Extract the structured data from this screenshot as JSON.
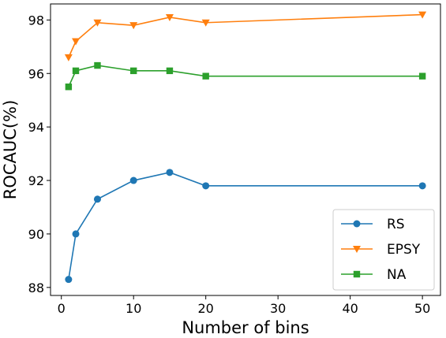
{
  "chart_data": {
    "type": "line",
    "title": "",
    "xlabel": "Number of bins",
    "ylabel": "ROCAUC(%)",
    "xlim": [
      -1.5,
      52.5
    ],
    "ylim": [
      87.7,
      98.6
    ],
    "xticks": [
      0,
      10,
      20,
      30,
      40,
      50
    ],
    "yticks": [
      88,
      90,
      92,
      94,
      96,
      98
    ],
    "grid": false,
    "legend_position": "lower-right",
    "x": [
      1,
      2,
      5,
      10,
      15,
      20,
      50
    ],
    "series": [
      {
        "name": "RS",
        "color": "#1f77b4",
        "marker": "circle",
        "values": [
          88.3,
          90.0,
          91.3,
          92.0,
          92.3,
          91.8,
          91.8
        ]
      },
      {
        "name": "EPSY",
        "color": "#ff7f0e",
        "marker": "triangle-down",
        "values": [
          96.6,
          97.2,
          97.9,
          97.8,
          98.1,
          97.9,
          98.2
        ]
      },
      {
        "name": "NA",
        "color": "#2ca02c",
        "marker": "square",
        "values": [
          95.5,
          96.1,
          96.3,
          96.1,
          96.1,
          95.9,
          95.9
        ]
      }
    ]
  }
}
